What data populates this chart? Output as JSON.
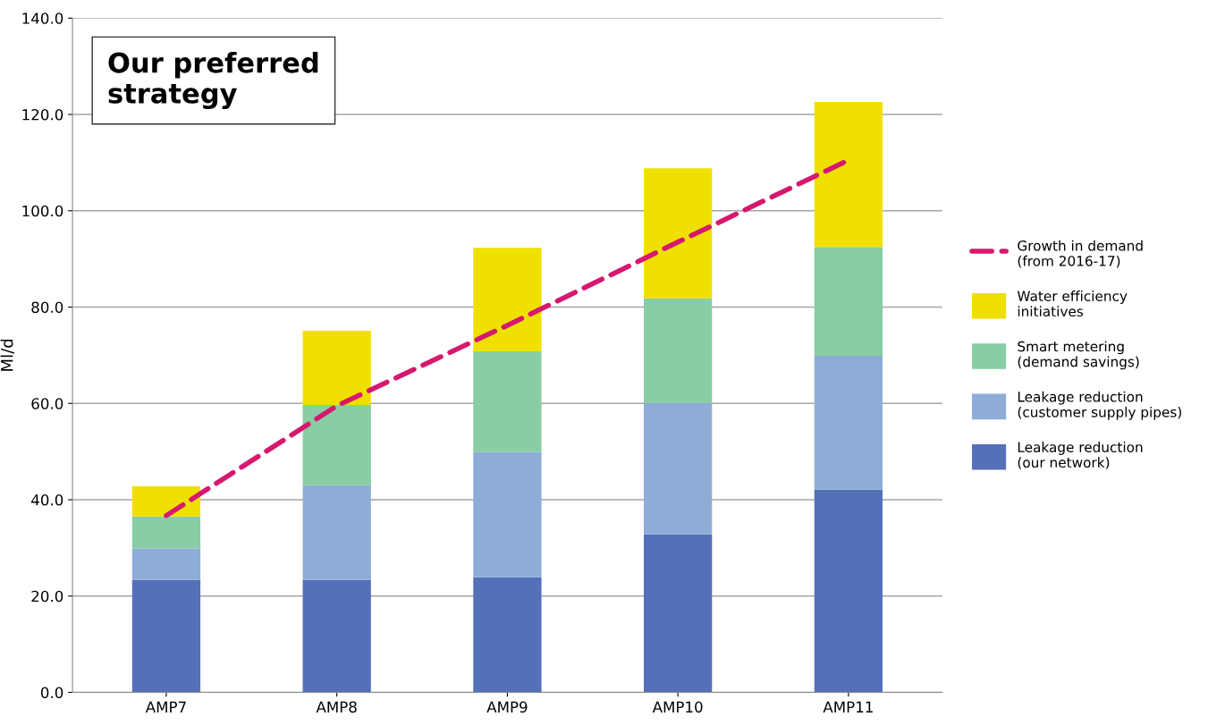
{
  "chart_data": {
    "type": "bar",
    "stacked": true,
    "ylabel": "Ml/d",
    "categories": [
      "AMP7",
      "AMP8",
      "AMP9",
      "AMP10",
      "AMP11"
    ],
    "series": [
      {
        "name": "Leakage reduction\n(our network)",
        "color": "#5470b8",
        "values": [
          23.4,
          23.4,
          23.9,
          32.8,
          42.1
        ]
      },
      {
        "name": "Leakage reduction\n(customer supply pipes)",
        "color": "#8eadd6",
        "values": [
          6.5,
          19.6,
          26.0,
          27.3,
          27.8
        ]
      },
      {
        "name": "Smart metering\n(demand savings)",
        "color": "#88cda4",
        "values": [
          6.6,
          16.7,
          20.9,
          21.7,
          22.6
        ]
      },
      {
        "name": "Water efficiency\ninitiatives",
        "color": "#f0e000",
        "values": [
          6.3,
          15.4,
          21.5,
          27.0,
          30.1
        ]
      },
      {
        "name": "Growth in demand\n(from 2016-17)",
        "color": "#d6186e",
        "type": "line",
        "line_style": "dashed",
        "values": [
          36.7,
          59.5,
          76.2,
          93.5,
          110.5
        ]
      }
    ],
    "ylim": [
      0,
      140
    ],
    "yticks": [
      {
        "value": 0,
        "label": "0.0"
      },
      {
        "value": 20,
        "label": "20.0"
      },
      {
        "value": 40,
        "label": "40.0"
      },
      {
        "value": 60,
        "label": "60.0"
      },
      {
        "value": 80,
        "label": "80.0"
      },
      {
        "value": 100,
        "label": "100.0"
      },
      {
        "value": 120,
        "label": "120.0"
      },
      {
        "value": 140,
        "label": "140.0"
      }
    ],
    "grid": "y",
    "legend": "right",
    "annotations": [
      "Our preferred\nstrategy"
    ]
  }
}
